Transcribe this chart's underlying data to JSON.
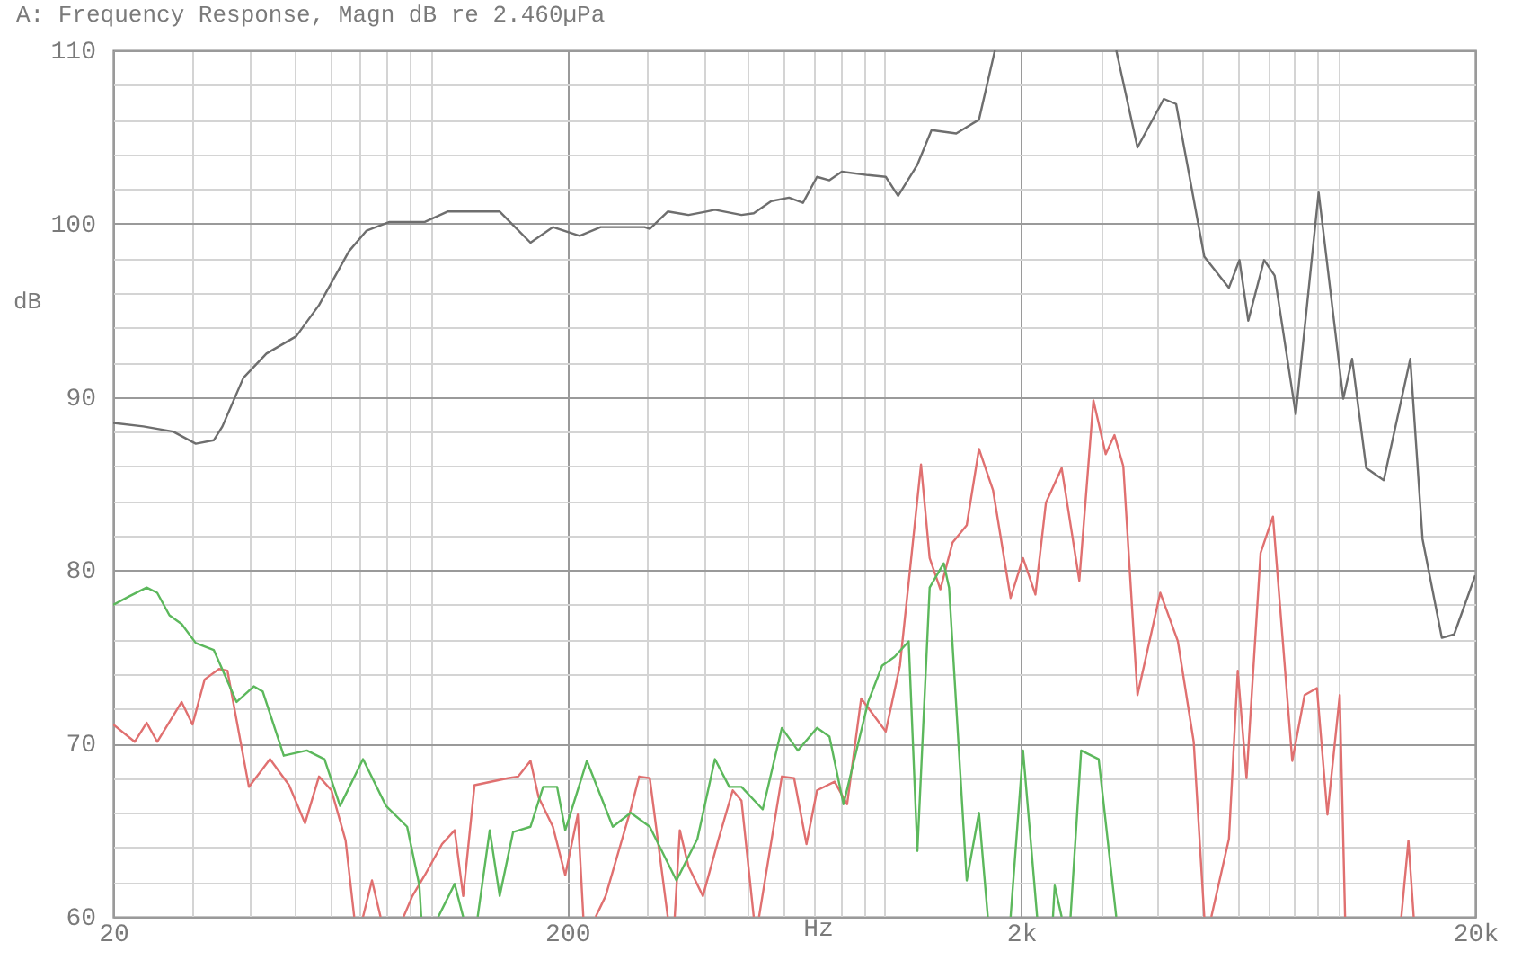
{
  "chart_data": {
    "type": "line",
    "title": "A: Frequency Response, Magn dB re 2.460µPa",
    "xlabel": "Hz",
    "ylabel": "dB",
    "log": "x",
    "grid": true,
    "line_style": "solid",
    "marker": "none",
    "xlim": [
      20,
      20000
    ],
    "ylim": [
      60,
      110
    ],
    "xticks": [
      20,
      {
        "value": 30,
        "label": null
      },
      {
        "value": 40,
        "label": null
      },
      {
        "value": 50,
        "label": null
      },
      {
        "value": 60,
        "label": null
      },
      {
        "value": 70,
        "label": null
      },
      {
        "value": 80,
        "label": null
      },
      {
        "value": 90,
        "label": null
      },
      {
        "value": 100,
        "label": null
      },
      200,
      {
        "value": 300,
        "label": null
      },
      {
        "value": 400,
        "label": null
      },
      {
        "value": 500,
        "label": null
      },
      {
        "value": 600,
        "label": null
      },
      {
        "value": 700,
        "label": null
      },
      {
        "value": 800,
        "label": null
      },
      {
        "value": 900,
        "label": null
      },
      {
        "value": 1000,
        "label": null
      },
      {
        "value": 2000,
        "label": "2k"
      },
      {
        "value": 3000,
        "label": null
      },
      {
        "value": 4000,
        "label": null
      },
      {
        "value": 5000,
        "label": null
      },
      {
        "value": 6000,
        "label": null
      },
      {
        "value": 7000,
        "label": null
      },
      {
        "value": 8000,
        "label": null
      },
      {
        "value": 9000,
        "label": null
      },
      {
        "value": 10000,
        "label": null
      },
      {
        "value": 20000,
        "label": "20k"
      }
    ],
    "yticks": [
      60,
      {
        "value": 62,
        "label": null
      },
      {
        "value": 64,
        "label": null
      },
      {
        "value": 66,
        "label": null
      },
      {
        "value": 68,
        "label": null
      },
      70,
      {
        "value": 72,
        "label": null
      },
      {
        "value": 74,
        "label": null
      },
      {
        "value": 76,
        "label": null
      },
      {
        "value": 78,
        "label": null
      },
      80,
      {
        "value": 82,
        "label": null
      },
      {
        "value": 84,
        "label": null
      },
      {
        "value": 86,
        "label": null
      },
      {
        "value": 88,
        "label": null
      },
      90,
      {
        "value": 92,
        "label": null
      },
      {
        "value": 94,
        "label": null
      },
      {
        "value": 96,
        "label": null
      },
      {
        "value": 98,
        "label": null
      },
      100,
      {
        "value": 102,
        "label": null
      },
      {
        "value": 104,
        "label": null
      },
      {
        "value": 106,
        "label": null
      },
      {
        "value": 108,
        "label": null
      },
      110
    ],
    "series": [
      {
        "color": "#6e6e6e",
        "x": [
          20,
          23.3,
          27.1,
          30.4,
          33.3,
          34.8,
          38.7,
          43.5,
          50.6,
          56.8,
          66.1,
          72.3,
          81.2,
          97.1,
          109,
          142,
          166,
          186,
          213,
          237,
          296,
          304,
          333,
          370,
          405,
          423,
          484,
          515,
          563,
          616,
          661,
          710,
          756,
          805,
          920,
          1006,
          1071,
          1181,
          1269,
          1438,
          1614,
          1750,
          2500,
          3238,
          3606,
          4122,
          4387,
          5060,
          5734,
          6048,
          6325,
          6853,
          7230,
          8047,
          9038,
          10240,
          10708,
          11504,
          12573,
          14384,
          15306,
          16882,
          17970,
          20000
        ],
        "values": [
          88.5,
          88.3,
          88.0,
          87.3,
          87.5,
          88.3,
          91.1,
          92.5,
          93.5,
          95.3,
          98.4,
          99.6,
          100.1,
          100.1,
          100.7,
          100.7,
          98.9,
          99.8,
          99.3,
          99.8,
          99.8,
          99.7,
          100.7,
          100.5,
          100.7,
          100.8,
          100.5,
          100.6,
          101.3,
          101.5,
          101.2,
          102.7,
          102.5,
          103.0,
          102.8,
          102.7,
          101.6,
          103.4,
          105.4,
          105.2,
          106.0,
          110,
          null,
          110,
          104.4,
          107.2,
          106.9,
          98.1,
          96.3,
          97.9,
          94.4,
          97.9,
          97.0,
          89.0,
          101.8,
          89.9,
          92.2,
          85.9,
          85.2,
          92.2,
          81.8,
          76.1,
          76.3,
          79.7
        ]
      },
      {
        "color": "#e07070",
        "x": [
          20,
          22.3,
          23.7,
          25.0,
          28.3,
          29.9,
          31.8,
          34.2,
          35.7,
          39.8,
          44.3,
          48.8,
          52.9,
          56.8,
          60.5,
          65.0,
          67.9,
          69,
          71.0,
          74.3,
          77.6,
          80,
          87.2,
          91.2,
          97.1,
          106,
          113,
          118,
          125,
          148,
          156,
          166,
          173,
          186,
          198,
          211,
          217,
          225,
          231,
          243,
          276,
          288,
          304,
          333,
          340,
          345,
          354,
          370,
          398,
          431,
          463,
          484,
          515,
          520,
          529,
          594,
          632,
          673,
          710,
          776,
          827,
          888,
          1006,
          1081,
          1203,
          1257,
          1327,
          1412,
          1517,
          1614,
          1734,
          1895,
          2018,
          2149,
          2267,
          2455,
          2685,
          2884,
          3069,
          3209,
          3356,
          3606,
          4048,
          4426,
          4796,
          5060,
          5150,
          5244,
          5734,
          5997,
          6269,
          6733,
          7168,
          7906,
          8416,
          8960,
          9450,
          10060,
          10335,
          12000,
          13747,
          14250,
          14637
        ],
        "values": [
          71.1,
          70.1,
          71.2,
          70.1,
          72.4,
          71.1,
          73.7,
          74.3,
          74.2,
          67.5,
          69.1,
          67.6,
          65.4,
          68.1,
          67.3,
          64.4,
          60,
          null,
          60,
          62.1,
          60,
          null,
          60,
          61.2,
          62.4,
          64.2,
          65.0,
          61.2,
          67.6,
          68.0,
          68.1,
          69.0,
          66.9,
          65.2,
          62.4,
          65.9,
          60,
          null,
          60,
          61.2,
          66.2,
          68.1,
          68.0,
          60,
          null,
          60,
          65.0,
          62.9,
          61.2,
          64.5,
          67.3,
          66.7,
          60,
          null,
          60,
          68.1,
          68.0,
          64.2,
          67.3,
          67.8,
          66.5,
          72.6,
          70.7,
          74.5,
          86.1,
          80.7,
          78.9,
          81.6,
          82.6,
          87.0,
          84.6,
          78.4,
          80.7,
          78.6,
          83.9,
          85.9,
          79.4,
          89.8,
          86.7,
          87.8,
          86.0,
          72.8,
          78.7,
          75.9,
          70.1,
          60,
          null,
          60,
          64.5,
          74.2,
          68.0,
          81.0,
          83.1,
          69.0,
          72.8,
          73.2,
          65.9,
          72.8,
          60,
          null,
          60,
          64.4,
          60
        ]
      },
      {
        "color": "#5cb85c",
        "x": [
          20,
          21.7,
          23.7,
          25.0,
          26.6,
          28.3,
          30.4,
          33.3,
          37.4,
          40.8,
          42.7,
          47.5,
          53.4,
          58.4,
          63.2,
          71.0,
          79.8,
          88.8,
          94.5,
          95.4,
          100,
          104,
          113,
          118,
          122,
          127,
          135,
          142,
          152,
          166,
          177,
          190,
          198,
          221,
          252,
          276,
          304,
          348,
          387,
          423,
          455,
          484,
          539,
          594,
          644,
          710,
          756,
          812,
          920,
          988,
          1052,
          1130,
          1181,
          1257,
          1350,
          1387,
          1517,
          1614,
          1688,
          1800,
          1895,
          2018,
          2168,
          2250,
          2349,
          2370,
          2455,
          2500,
          2568,
          2710,
          2962,
          3238
        ],
        "values": [
          78.0,
          78.5,
          79.0,
          78.7,
          77.4,
          76.9,
          75.8,
          75.4,
          72.4,
          73.3,
          73.0,
          69.3,
          69.6,
          69.1,
          66.4,
          69.1,
          66.4,
          65.2,
          61.8,
          60,
          null,
          60,
          61.9,
          60,
          null,
          60,
          65.0,
          61.2,
          64.9,
          65.2,
          67.5,
          67.5,
          65.0,
          69.0,
          65.2,
          66.0,
          65.2,
          62.1,
          64.5,
          69.1,
          67.5,
          67.5,
          66.2,
          70.9,
          69.6,
          70.9,
          70.4,
          66.5,
          72.4,
          74.5,
          75.0,
          75.9,
          63.8,
          79.0,
          80.4,
          79.0,
          62.1,
          66.0,
          60,
          null,
          60,
          69.6,
          60,
          null,
          60,
          61.8,
          60,
          null,
          60,
          69.6,
          69.1,
          60
        ]
      }
    ]
  }
}
